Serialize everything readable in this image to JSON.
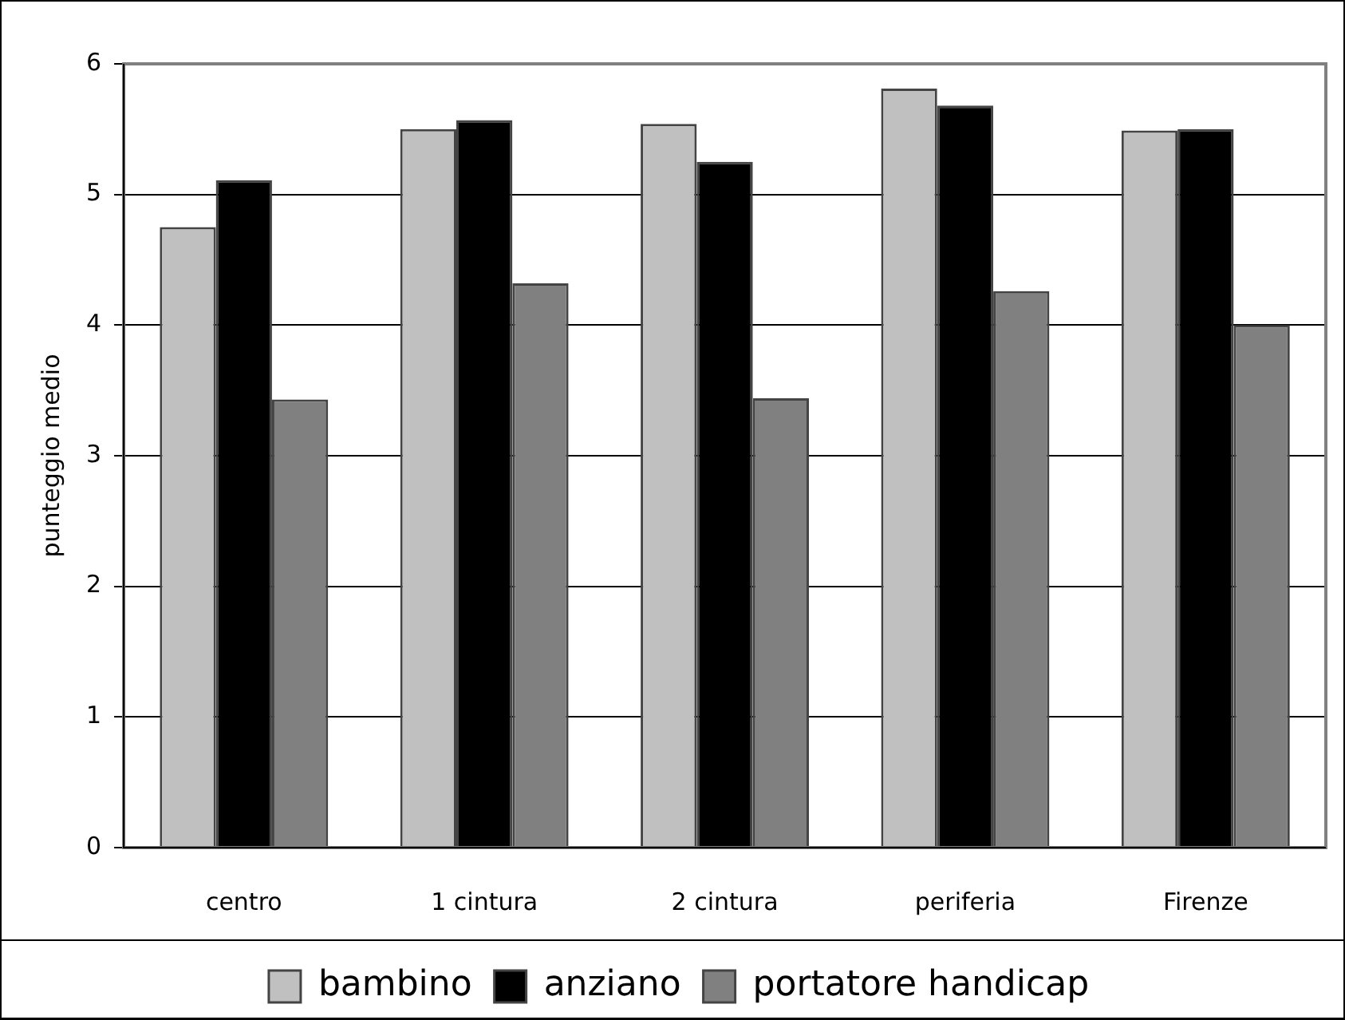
{
  "chart_data": {
    "type": "bar",
    "ylabel": "punteggio medio",
    "categories": [
      "centro",
      "1 cintura",
      "2 cintura",
      "periferia",
      "Firenze"
    ],
    "series": [
      {
        "name": "bambino",
        "color": "#c0c0c0",
        "values": [
          4.75,
          5.5,
          5.54,
          5.81,
          5.49
        ]
      },
      {
        "name": "anziano",
        "color": "#000000",
        "values": [
          5.11,
          5.57,
          5.25,
          5.68,
          5.5
        ]
      },
      {
        "name": "portatore handicap",
        "color": "#808080",
        "values": [
          3.43,
          4.32,
          3.44,
          4.26,
          4.0
        ]
      }
    ],
    "ylim": [
      0,
      6
    ],
    "yticks": [
      0,
      1,
      2,
      3,
      4,
      5,
      6
    ],
    "grid": "y",
    "legend": "bottom"
  }
}
